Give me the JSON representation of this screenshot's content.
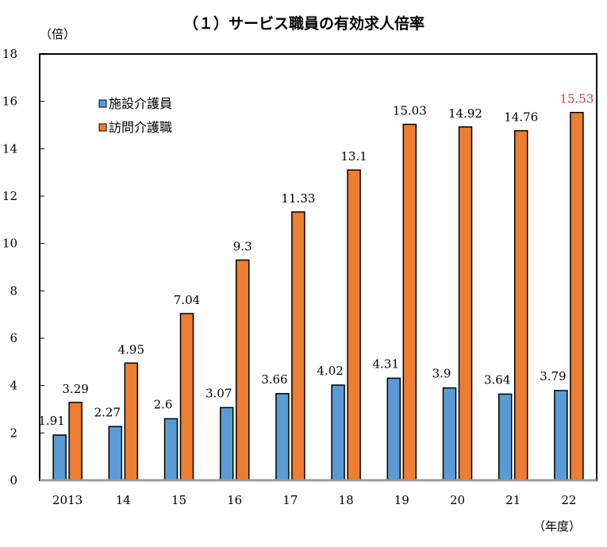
{
  "chart_data": {
    "type": "bar",
    "title": "（１）サービス職員の有効求人倍率",
    "ylabel": "（倍）",
    "xlabel": "（年度）",
    "ylim": [
      0,
      18
    ],
    "yticks": [
      0,
      2,
      4,
      6,
      8,
      10,
      12,
      14,
      16,
      18
    ],
    "categories": [
      "2013",
      "14",
      "15",
      "16",
      "17",
      "18",
      "19",
      "20",
      "21",
      "22"
    ],
    "legend_position": "top-left",
    "grid": false,
    "series": [
      {
        "name": "施設介護員",
        "color": "#5B9BD5",
        "values": [
          1.91,
          2.27,
          2.6,
          3.07,
          3.66,
          4.02,
          4.31,
          3.9,
          3.64,
          3.79
        ],
        "labels": [
          "1.91",
          "2.27",
          "2.6",
          "3.07",
          "3.66",
          "4.02",
          "4.31",
          "3.9",
          "3.64",
          "3.79"
        ]
      },
      {
        "name": "訪問介護職",
        "color": "#ED7D31",
        "values": [
          3.29,
          4.95,
          7.04,
          9.3,
          11.33,
          13.1,
          15.03,
          14.92,
          14.76,
          15.53
        ],
        "labels": [
          "3.29",
          "4.95",
          "7.04",
          "9.3",
          "11.33",
          "13.1",
          "15.03",
          "14.92",
          "14.76",
          "15.53"
        ]
      }
    ],
    "highlight_label_color": "#D9383A"
  }
}
